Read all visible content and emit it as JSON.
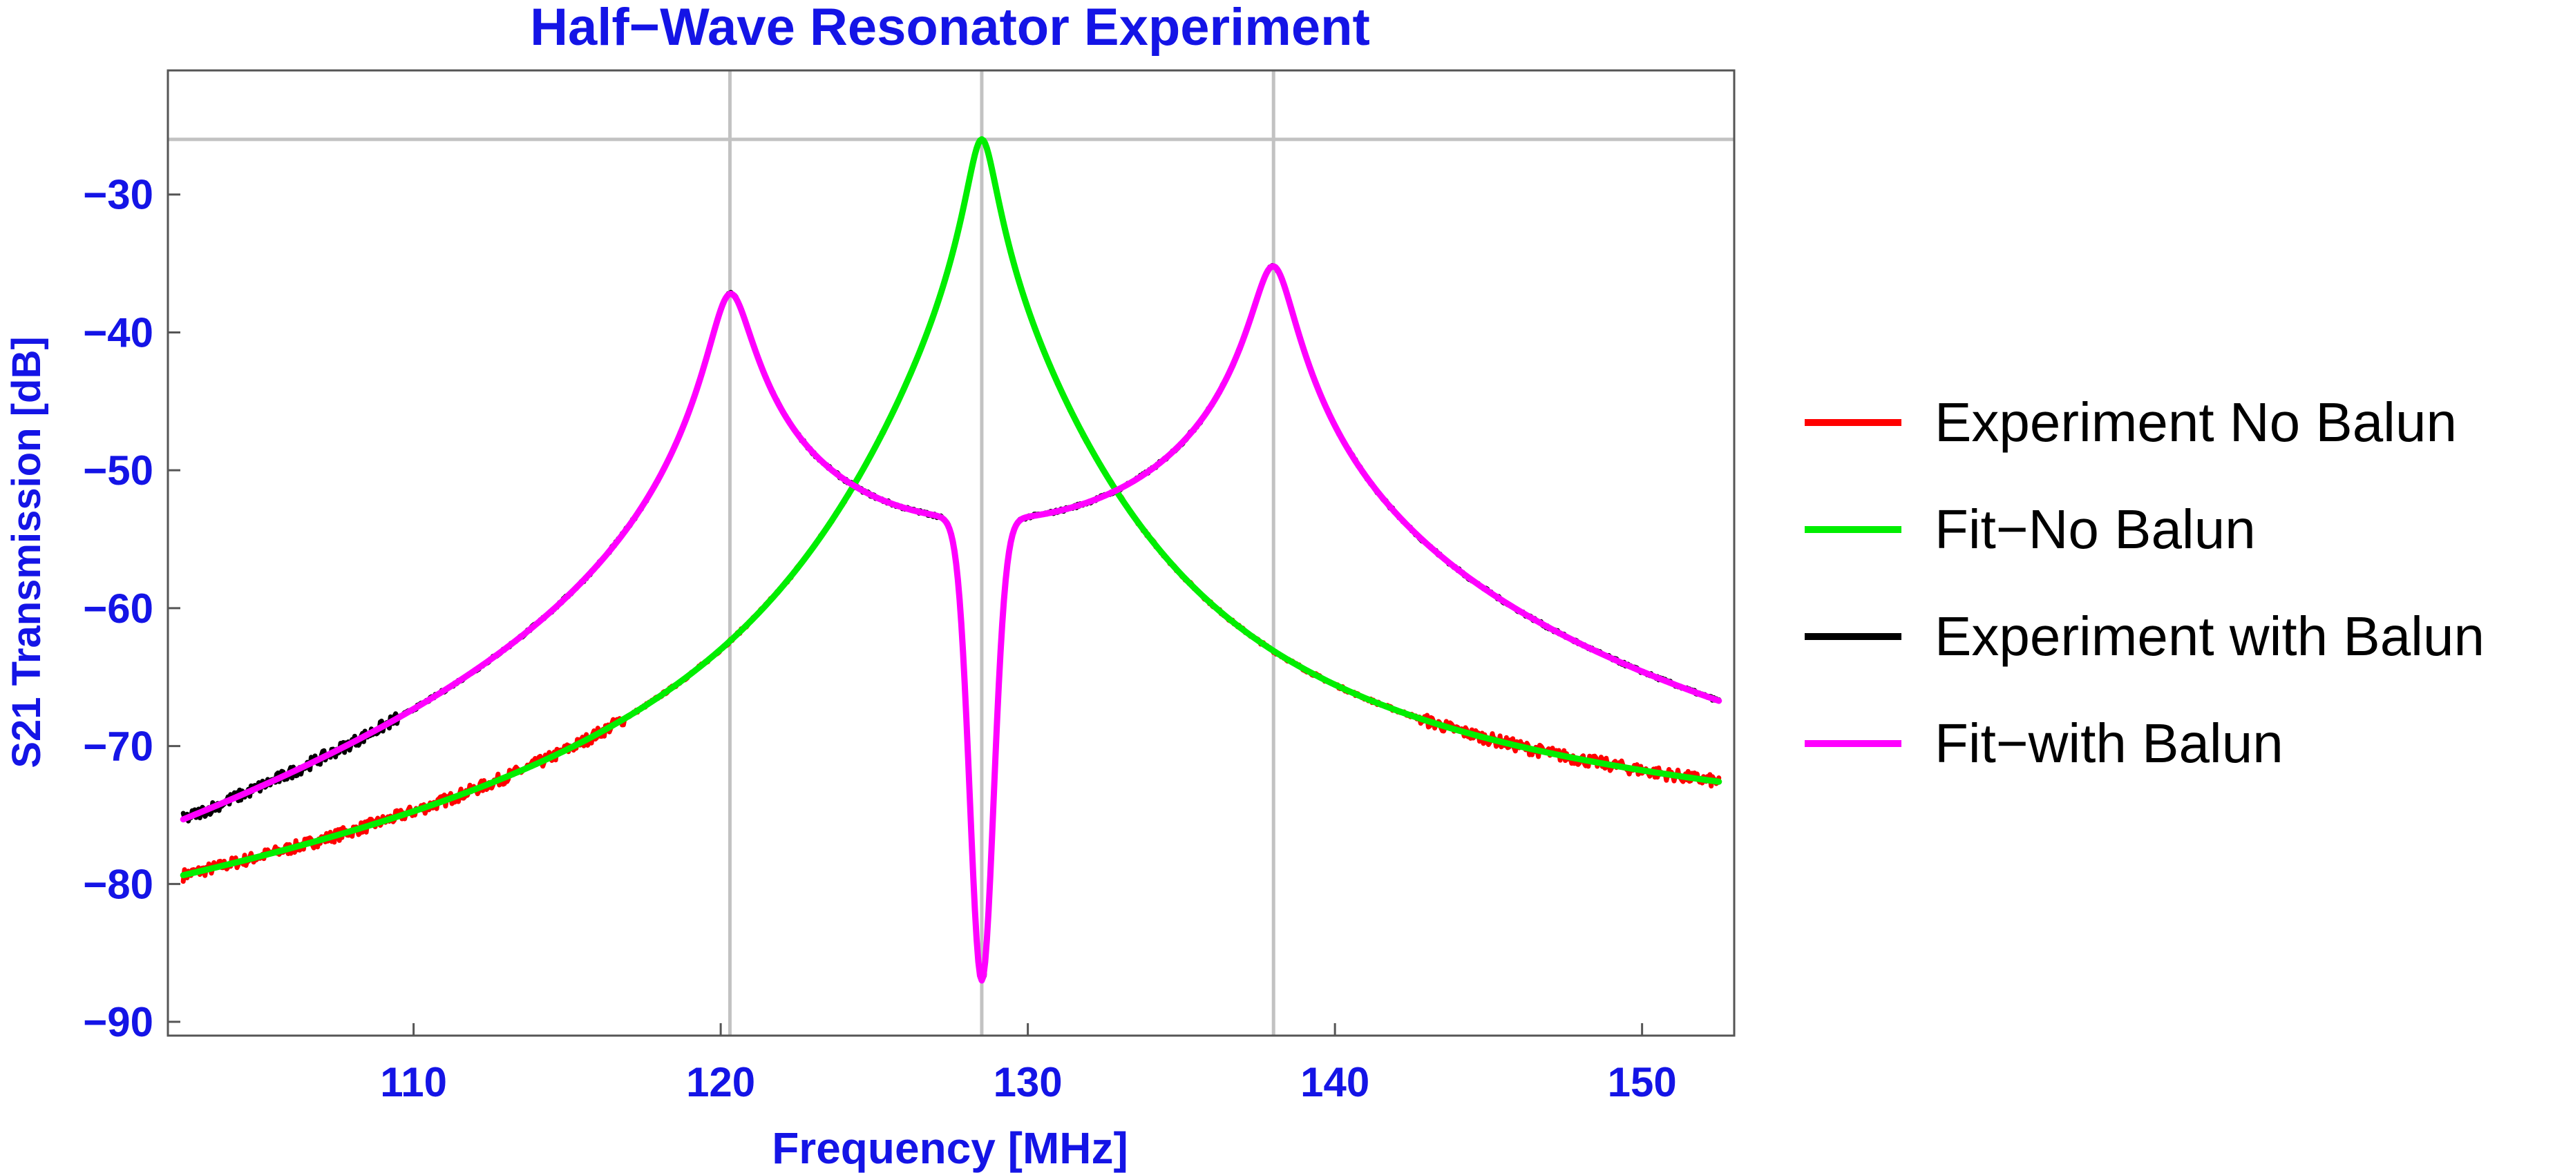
{
  "chart_data": {
    "type": "line",
    "title": "Half−Wave Resonator Experiment",
    "xlabel": "Frequency [MHz]",
    "ylabel": "S21 Transmission [dB]",
    "xlim": [
      102,
      153
    ],
    "ylim": [
      -91,
      -21
    ],
    "xticks": [
      110,
      120,
      130,
      140,
      150
    ],
    "xtick_labels": [
      "110",
      "120",
      "130",
      "140",
      "150"
    ],
    "yticks": [
      -30,
      -40,
      -50,
      -60,
      -70,
      -80,
      -90
    ],
    "ytick_labels": [
      "−30",
      "−40",
      "−50",
      "−60",
      "−70",
      "−80",
      "−90"
    ],
    "reference_lines": {
      "vertical_x": [
        120.3,
        128.5,
        138.0
      ],
      "horizontal_y": [
        -26
      ]
    },
    "grid": false,
    "legend_position": "right",
    "resonances": {
      "no_balun": {
        "f0": 128.5,
        "peak_db": -26.0,
        "start_db": -80.3,
        "end_db": -73.3
      },
      "with_balun": {
        "f1": 120.3,
        "peak1_db": -37.2,
        "f2": 138.0,
        "peak2_db": -35.2,
        "notch_f": 128.5,
        "notch_db": -87.0,
        "start_db": -73.8,
        "end_db": -65.0
      }
    },
    "series": [
      {
        "name": "Experiment No Balun",
        "color": "#ff0000",
        "role": "experiment",
        "model": "no_balun"
      },
      {
        "name": "Fit−No Balun",
        "color": "#00ee00",
        "role": "fit",
        "model": "no_balun"
      },
      {
        "name": "Experiment with Balun",
        "color": "#000000",
        "role": "experiment",
        "model": "with_balun"
      },
      {
        "name": "Fit−with Balun",
        "color": "#ff00ff",
        "role": "fit",
        "model": "with_balun"
      }
    ]
  },
  "colors": {
    "text_accent": "#1414e6",
    "frame": "#555555",
    "reference_line": "#c2c2c2"
  }
}
